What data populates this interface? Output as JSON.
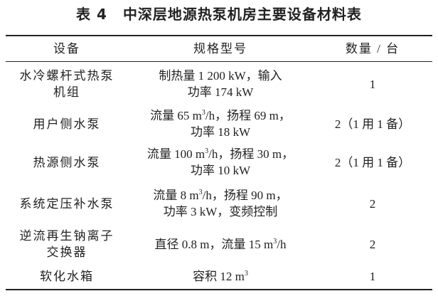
{
  "title": {
    "number": "表 4",
    "text": "中深层地源热泵机房主要设备材料表"
  },
  "table": {
    "headers": [
      "设备",
      "规格型号",
      "数量 / 台"
    ],
    "rows": [
      {
        "h": 62,
        "cells": [
          [
            [
              {
                "t": "水冷螺杆式热泵"
              }
            ],
            [
              {
                "t": "机组"
              }
            ]
          ],
          [
            [
              {
                "t": "制热量 1 200 kW，输入"
              }
            ],
            [
              {
                "t": "功率 174 kW"
              }
            ]
          ],
          [
            [
              {
                "t": "1"
              }
            ]
          ]
        ]
      },
      {
        "h": 50,
        "cells": [
          [
            [
              {
                "t": "用户侧水泵"
              }
            ]
          ],
          [
            [
              {
                "t": "流量 65 m"
              },
              {
                "t": "3",
                "sup": true
              },
              {
                "t": "/h，扬程 69 m，"
              }
            ],
            [
              {
                "t": "功率 18 kW"
              }
            ]
          ],
          [
            [
              {
                "t": "2（1 用 1 备）"
              }
            ]
          ]
        ]
      },
      {
        "h": 58,
        "cells": [
          [
            [
              {
                "t": "热源侧水泵"
              }
            ]
          ],
          [
            [
              {
                "t": "流量 100 m"
              },
              {
                "t": "3",
                "sup": true
              },
              {
                "t": "/h，扬程 30 m，"
              }
            ],
            [
              {
                "t": "功率 10 kW"
              }
            ]
          ],
          [
            [
              {
                "t": "2（1 用 1 备）"
              }
            ]
          ]
        ]
      },
      {
        "h": 58,
        "cells": [
          [
            [
              {
                "t": "系统定压补水泵"
              }
            ]
          ],
          [
            [
              {
                "t": "流量 8 m"
              },
              {
                "t": "3",
                "sup": true
              },
              {
                "t": "/h，扬程 90 m，"
              }
            ],
            [
              {
                "t": "功率 3 kW，变频控制"
              }
            ]
          ],
          [
            [
              {
                "t": "2"
              }
            ]
          ]
        ]
      },
      {
        "h": 56,
        "cells": [
          [
            [
              {
                "t": "逆流再生钠离子"
              }
            ],
            [
              {
                "t": "交换器"
              }
            ]
          ],
          [
            [
              {
                "t": "直径 0.8 m，流量 15 m"
              },
              {
                "t": "3",
                "sup": true
              },
              {
                "t": "/h"
              }
            ]
          ],
          [
            [
              {
                "t": "2"
              }
            ]
          ]
        ]
      },
      {
        "h": 35,
        "cells": [
          [
            [
              {
                "t": "软化水箱"
              }
            ]
          ],
          [
            [
              {
                "t": "容积 12 m"
              },
              {
                "t": "3",
                "sup": true
              }
            ]
          ],
          [
            [
              {
                "t": "1"
              }
            ]
          ]
        ]
      }
    ]
  }
}
